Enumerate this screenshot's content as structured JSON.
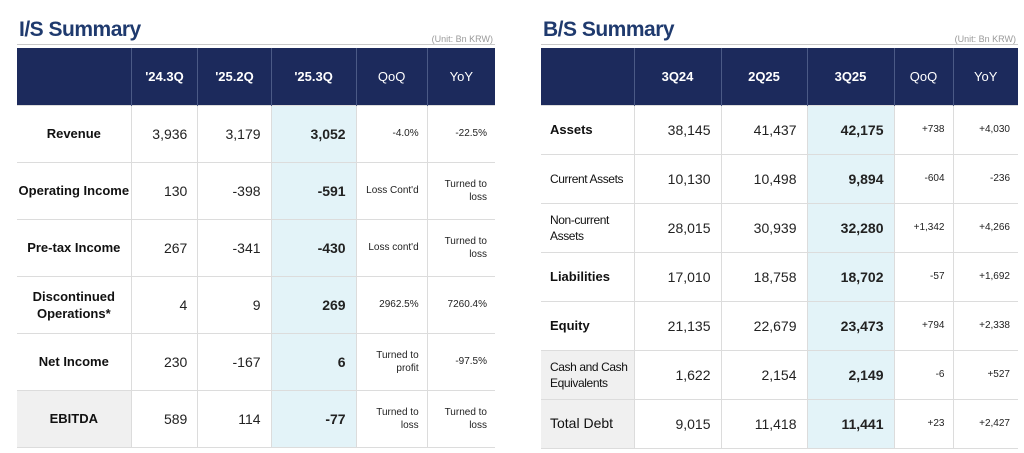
{
  "is_summary": {
    "title": "I/S Summary",
    "unit": "(Unit: Bn KRW)",
    "columns": [
      "'24.3Q",
      "'25.2Q",
      "'25.3Q",
      "QoQ",
      "YoY"
    ],
    "rows": [
      {
        "label": "Revenue",
        "v1": "3,936",
        "v2": "3,179",
        "v3": "3,052",
        "qoq": "-4.0%",
        "yoy": "-22.5%"
      },
      {
        "label": "Operating Income",
        "v1": "130",
        "v2": "-398",
        "v3": "-591",
        "qoq": "Loss Cont'd",
        "yoy": "Turned to loss"
      },
      {
        "label": "Pre-tax Income",
        "v1": "267",
        "v2": "-341",
        "v3": "-430",
        "qoq": "Loss cont'd",
        "yoy": "Turned to loss"
      },
      {
        "label": "Discontinued Operations*",
        "v1": "4",
        "v2": "9",
        "v3": "269",
        "qoq": "2962.5%",
        "yoy": "7260.4%"
      },
      {
        "label": "Net Income",
        "v1": "230",
        "v2": "-167",
        "v3": "6",
        "qoq": "Turned to profit",
        "yoy": "-97.5%"
      },
      {
        "label": "EBITDA",
        "v1": "589",
        "v2": "114",
        "v3": "-77",
        "qoq": "Turned to loss",
        "yoy": "Turned to loss"
      }
    ]
  },
  "bs_summary": {
    "title": "B/S Summary",
    "unit": "(Unit: Bn KRW)",
    "columns": [
      "3Q24",
      "2Q25",
      "3Q25",
      "QoQ",
      "YoY"
    ],
    "rows": [
      {
        "label": "Assets",
        "v1": "38,145",
        "v2": "41,437",
        "v3": "42,175",
        "qoq": "+738",
        "yoy": "+4,030"
      },
      {
        "label": "Current Assets",
        "v1": "10,130",
        "v2": "10,498",
        "v3": "9,894",
        "qoq": "-604",
        "yoy": "-236"
      },
      {
        "label": "Non-current Assets",
        "v1": "28,015",
        "v2": "30,939",
        "v3": "32,280",
        "qoq": "+1,342",
        "yoy": "+4,266"
      },
      {
        "label": "Liabilities",
        "v1": "17,010",
        "v2": "18,758",
        "v3": "18,702",
        "qoq": "-57",
        "yoy": "+1,692"
      },
      {
        "label": "Equity",
        "v1": "21,135",
        "v2": "22,679",
        "v3": "23,473",
        "qoq": "+794",
        "yoy": "+2,338"
      },
      {
        "label": "Cash and Cash Equivalents",
        "v1": "1,622",
        "v2": "2,154",
        "v3": "2,149",
        "qoq": "-6",
        "yoy": "+527"
      },
      {
        "label": "Total Debt",
        "v1": "9,015",
        "v2": "11,418",
        "v3": "11,441",
        "qoq": "+23",
        "yoy": "+2,427"
      }
    ]
  },
  "colors": {
    "header_bg": "#1c2a5c",
    "title": "#1f3a6e",
    "highlight": "#e3f3f8"
  }
}
